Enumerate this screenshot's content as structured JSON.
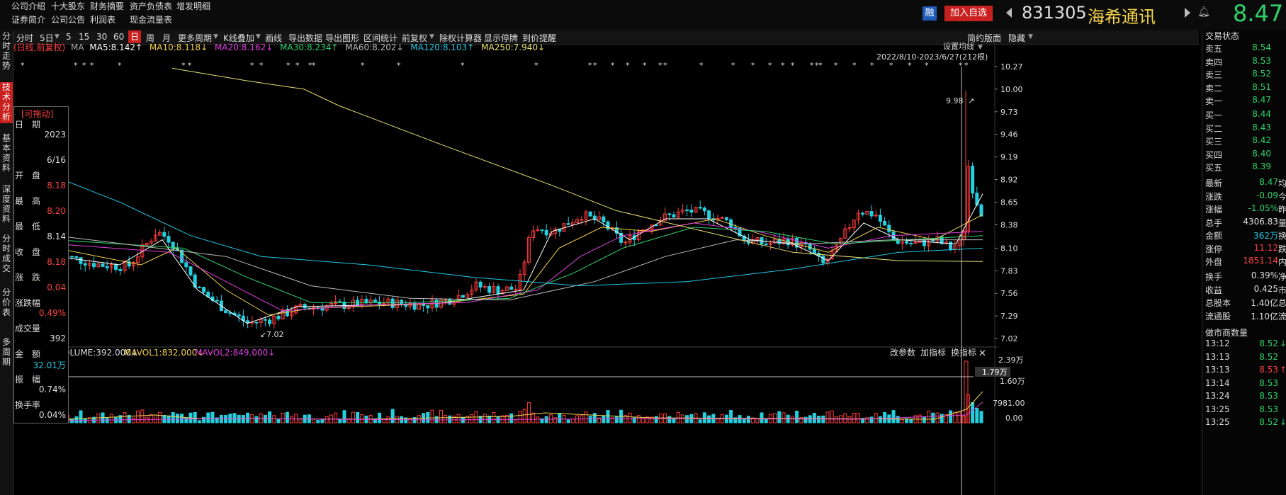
{
  "top_menu": {
    "row1": [
      "公司介绍",
      "十大股东",
      "财务摘要",
      "资产负债表",
      "增发明细"
    ],
    "row2": [
      "证券简介",
      "公司公告",
      "利润表",
      "现金流量表"
    ]
  },
  "stock": {
    "badge": "融",
    "add_watch": "加入自选",
    "code": "831305",
    "name": "海希通讯",
    "price": "8.47"
  },
  "left_tabs": [
    "分时走势",
    "技术分析",
    "基本资料",
    "深度资料",
    "分时成交",
    "分价表",
    "多周期"
  ],
  "toolbar": {
    "items": [
      "分时",
      "5日",
      "5",
      "15",
      "30",
      "60",
      "日",
      "周",
      "月",
      "更多周期",
      "K线叠加",
      "画线",
      "导出数据",
      "导出图形",
      "区间统计",
      "前复权",
      "除权计算器",
      "显示停牌",
      "到价提醒"
    ],
    "active": "日",
    "right_items": [
      "简约版面",
      "隐藏"
    ]
  },
  "ma_legend": {
    "prefix": "(日线,前复权)",
    "ma": "MA",
    "items": [
      {
        "label": "MA5:8.142↑",
        "color": "#ffffff"
      },
      {
        "label": "MA10:8.118↓",
        "color": "#f2d24a"
      },
      {
        "label": "MA20:8.162↓",
        "color": "#e040e0"
      },
      {
        "label": "MA30:8.234↑",
        "color": "#2ed26a"
      },
      {
        "label": "MA60:8.202↓",
        "color": "#bbbbbb"
      },
      {
        "label": "MA120:8.103↑",
        "color": "#22c8e6"
      },
      {
        "label": "MA250:7.940↓",
        "color": "#e8e070"
      }
    ]
  },
  "chart_controls": {
    "settings": "设置均线",
    "range": "2022/8/10-2023/6/27(212根)"
  },
  "price_axis": [
    "10.27",
    "10.00",
    "9.73",
    "9.46",
    "9.19",
    "8.92",
    "8.65",
    "8.38",
    "8.10",
    "7.83",
    "7.56",
    "7.29",
    "7.02"
  ],
  "annotations": {
    "high": "9.98",
    "low": "7.02"
  },
  "volume": {
    "legend_volume": "VOLUME:392.000↓",
    "legend_mavol1": "MAVOL1:832.000↓",
    "legend_mavol2": "MAVOL2:849.000↓",
    "buttons": [
      "改参数",
      "加指标",
      "换指标"
    ],
    "axis": [
      "2.39万",
      "1.60万",
      "7981.00",
      "0.00"
    ],
    "cursor_value": "1.79万"
  },
  "info_box": {
    "title": "[可拖动]",
    "rows": [
      {
        "label": "日　期",
        "value": "2023",
        "color": "white"
      },
      {
        "label": "",
        "value": "6/16",
        "color": "white"
      },
      {
        "label": "开　盘",
        "value": "8.18",
        "color": "red"
      },
      {
        "label": "最　高",
        "value": "8.20",
        "color": "red"
      },
      {
        "label": "最　低",
        "value": "8.14",
        "color": "white"
      },
      {
        "label": "收　盘",
        "value": "8.18",
        "color": "red"
      },
      {
        "label": "涨　跌",
        "value": "0.04",
        "color": "red"
      },
      {
        "label": "涨跌幅",
        "value": "0.49%",
        "color": "red"
      },
      {
        "label": "成交量",
        "value": "392",
        "color": "white"
      },
      {
        "label": "金　额",
        "value": "32.01万",
        "color": "cyan"
      },
      {
        "label": "振　幅",
        "value": "0.74%",
        "color": "white"
      },
      {
        "label": "换手率",
        "value": "0.04%",
        "color": "white"
      }
    ]
  },
  "right_panel": {
    "title": "交易状态",
    "asks": [
      {
        "label": "卖五",
        "price": "8.54"
      },
      {
        "label": "卖四",
        "price": "8.53"
      },
      {
        "label": "卖三",
        "price": "8.52"
      },
      {
        "label": "卖二",
        "price": "8.51"
      },
      {
        "label": "卖一",
        "price": "8.47"
      }
    ],
    "bids": [
      {
        "label": "买一",
        "price": "8.44"
      },
      {
        "label": "买二",
        "price": "8.43"
      },
      {
        "label": "买三",
        "price": "8.42"
      },
      {
        "label": "买四",
        "price": "8.40"
      },
      {
        "label": "买五",
        "price": "8.39"
      }
    ],
    "stats": [
      {
        "label": "最新",
        "value": "8.47",
        "color": "green",
        "suffix": "均"
      },
      {
        "label": "涨跌",
        "value": "-0.09",
        "color": "green",
        "suffix": "今"
      },
      {
        "label": "涨幅",
        "value": "-1.05%",
        "color": "green",
        "suffix": "昨"
      },
      {
        "label": "总手",
        "value": "4306.83",
        "color": "white",
        "suffix": "量"
      },
      {
        "label": "金额",
        "value": "362万",
        "color": "cyan",
        "suffix": "换"
      },
      {
        "label": "涨停",
        "value": "11.12",
        "color": "red",
        "suffix": "跌"
      },
      {
        "label": "外盘",
        "value": "1851.14",
        "color": "red",
        "suffix": "内"
      }
    ],
    "stats2": [
      {
        "label": "换手",
        "value": "0.39%",
        "suffix": "净"
      },
      {
        "label": "收益",
        "value": "0.425",
        "suffix": "市"
      },
      {
        "label": "总股本",
        "value": "1.40亿",
        "suffix": "总"
      },
      {
        "label": "流通股",
        "value": "1.10亿",
        "suffix": "流"
      }
    ],
    "market_maker": "做市商数量",
    "ticks": [
      {
        "time": "13:12",
        "price": "8.52",
        "arrow": "↓"
      },
      {
        "time": "13:13",
        "price": "8.52",
        "arrow": ""
      },
      {
        "time": "13:13",
        "price": "8.53",
        "arrow": "↑"
      },
      {
        "time": "13:14",
        "price": "8.53",
        "arrow": ""
      },
      {
        "time": "13:24",
        "price": "8.53",
        "arrow": ""
      },
      {
        "time": "13:25",
        "price": "8.53",
        "arrow": ""
      },
      {
        "time": "13:25",
        "price": "8.52",
        "arrow": "↓"
      }
    ]
  }
}
